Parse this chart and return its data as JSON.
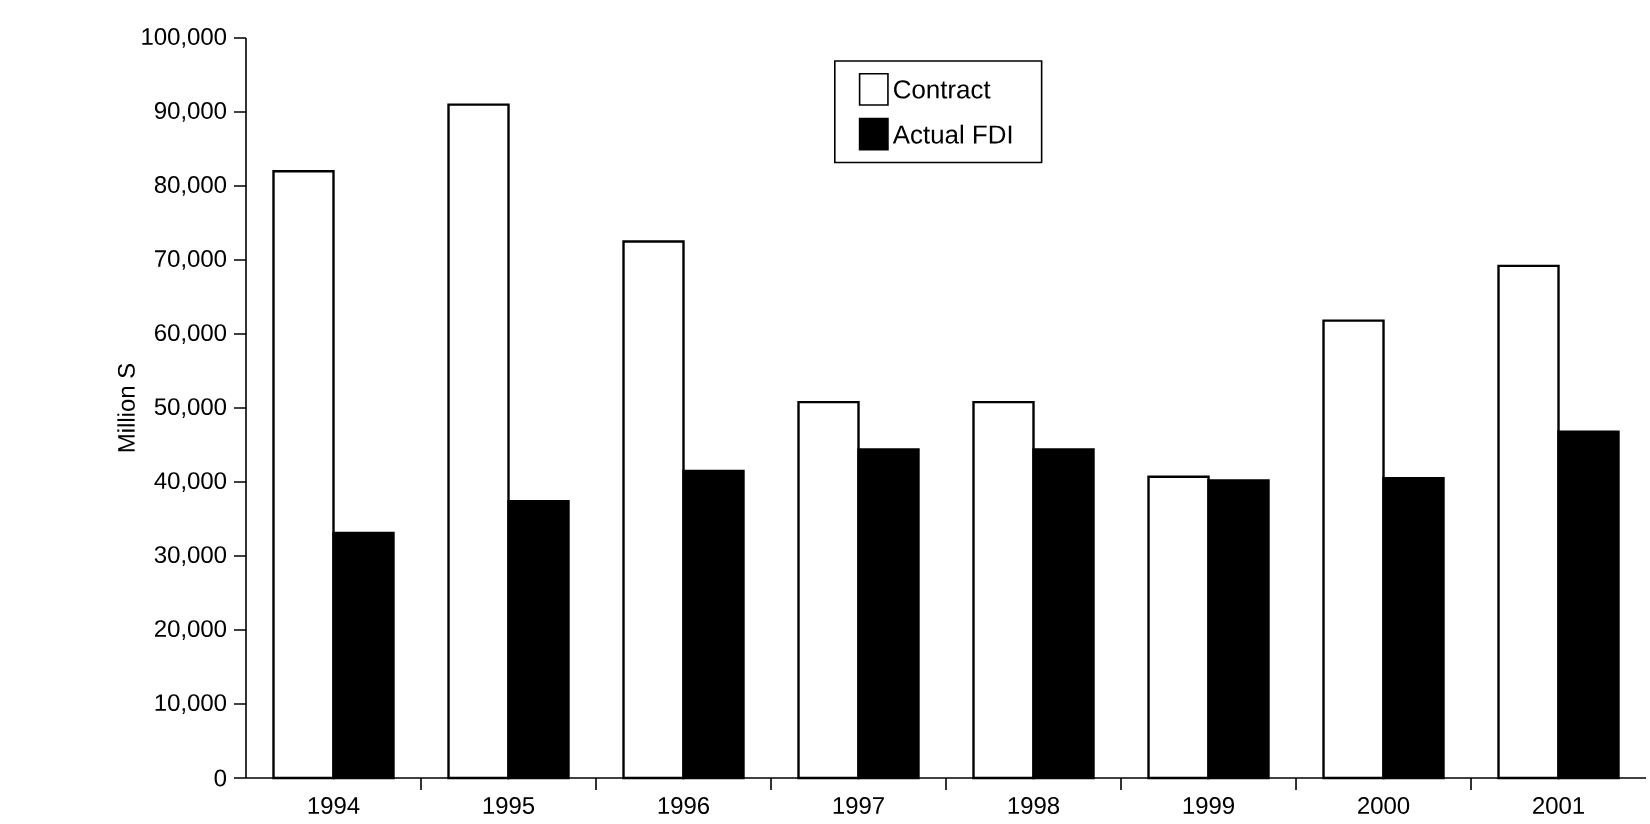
{
  "chart_data": {
    "type": "bar",
    "ylabel": "Million S",
    "categories": [
      "1994",
      "1995",
      "1996",
      "1997",
      "1998",
      "1999",
      "2000",
      "2001"
    ],
    "series": [
      {
        "name": "Contract",
        "color": "#ffffff",
        "values": [
          82000,
          91000,
          72500,
          50800,
          50800,
          40700,
          61800,
          69200
        ]
      },
      {
        "name": "Actual FDI",
        "color": "#000000",
        "values": [
          33100,
          37400,
          41500,
          44400,
          44400,
          40200,
          40500,
          46800
        ]
      }
    ],
    "ylim": [
      0,
      100000
    ],
    "yticks": [
      {
        "value": 0,
        "label": "0"
      },
      {
        "value": 10000,
        "label": "10,000"
      },
      {
        "value": 20000,
        "label": "20,000"
      },
      {
        "value": 30000,
        "label": "30,000"
      },
      {
        "value": 40000,
        "label": "40,000"
      },
      {
        "value": 50000,
        "label": "50,000"
      },
      {
        "value": 60000,
        "label": "60,000"
      },
      {
        "value": 70000,
        "label": "70,000"
      },
      {
        "value": 80000,
        "label": "80,000"
      },
      {
        "value": 90000,
        "label": "90,000"
      },
      {
        "value": 100000,
        "label": "100,000"
      }
    ],
    "grid": false,
    "legend": "top"
  }
}
